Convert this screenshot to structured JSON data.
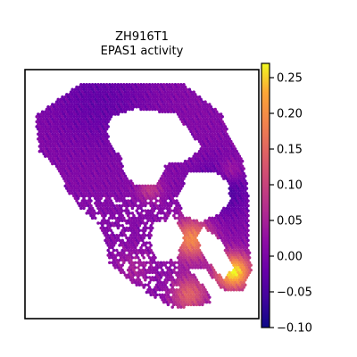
{
  "chart_data": {
    "type": "scatter",
    "title": "ZH916T1",
    "subtitle": "EPAS1 activity",
    "xlabel": "",
    "ylabel": "",
    "colormap": "plasma",
    "colorbar": {
      "min": -0.1,
      "max": 0.27,
      "ticks": [
        -0.1,
        -0.05,
        0.0,
        0.05,
        0.1,
        0.15,
        0.2,
        0.25
      ],
      "tick_labels": [
        "−0.10",
        "−0.05",
        "0.00",
        "0.05",
        "0.10",
        "0.15",
        "0.20",
        "0.25"
      ]
    },
    "grid": false,
    "legend": "colorbar-right",
    "point_marker": "hexagonal spots"
  }
}
